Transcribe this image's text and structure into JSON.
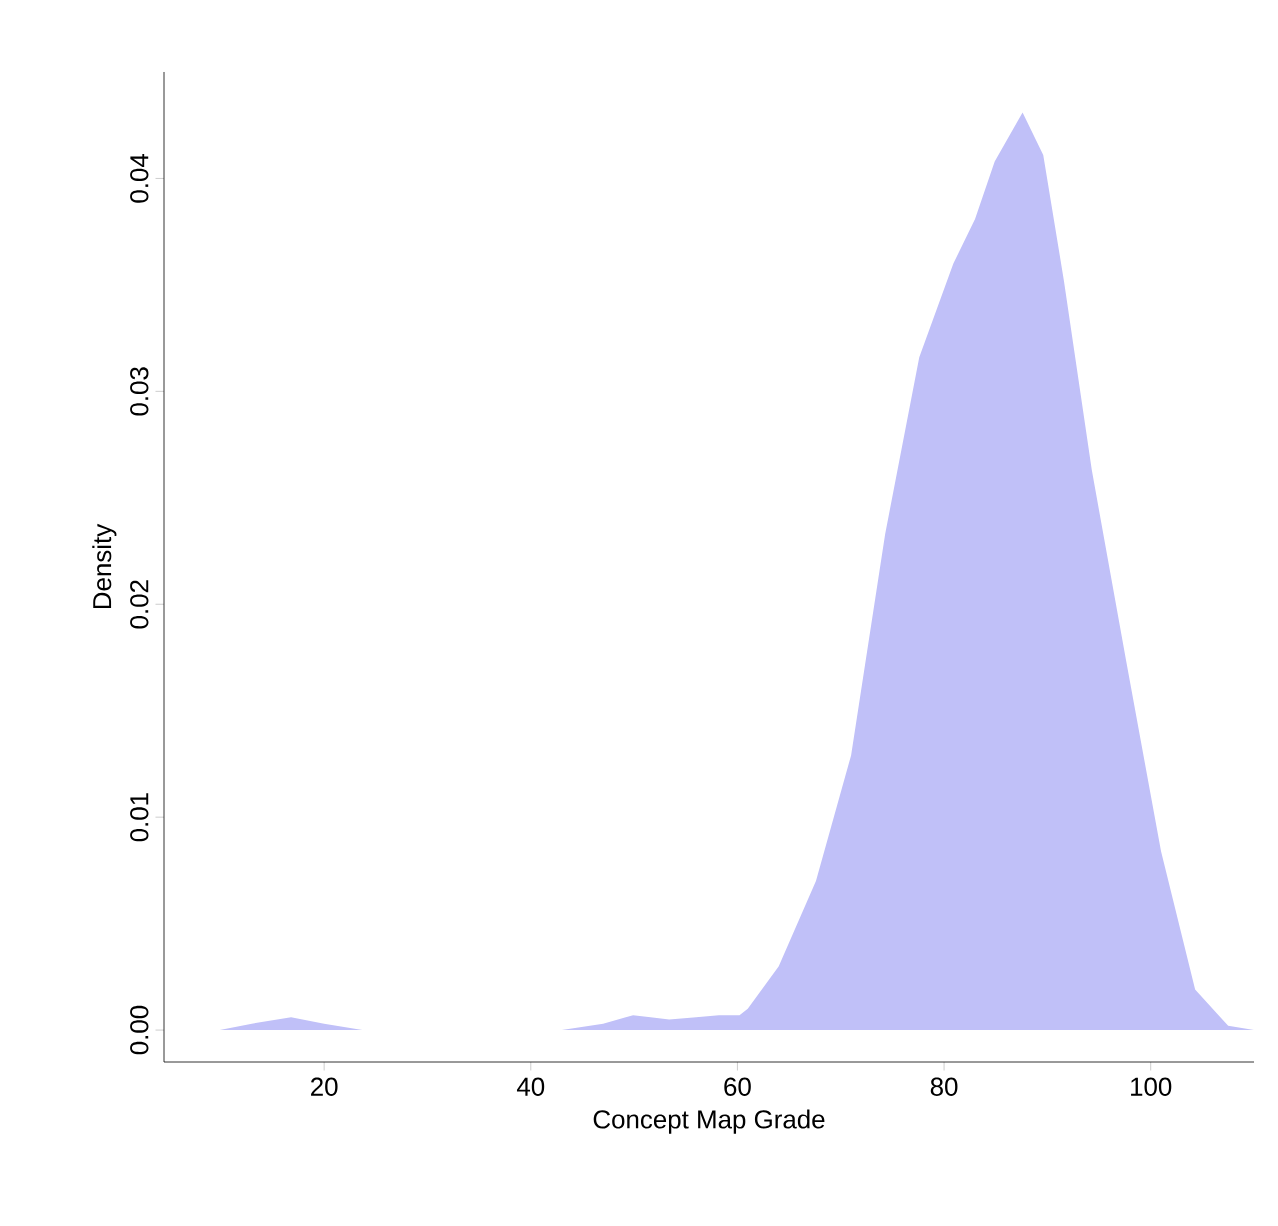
{
  "chart_data": {
    "type": "area",
    "xlabel": "Concept Map Grade",
    "ylabel": "Density",
    "xlim": [
      4.5,
      110
    ],
    "ylim": [
      -0.0015,
      0.045
    ],
    "xticks": [
      20,
      40,
      60,
      80,
      100
    ],
    "yticks": [
      {
        "value": 0,
        "label": "0.00"
      },
      {
        "value": 0.01,
        "label": "0.01"
      },
      {
        "value": 0.02,
        "label": "0.02"
      },
      {
        "value": 0.03,
        "label": "0.03"
      },
      {
        "value": 0.04,
        "label": "0.04"
      }
    ],
    "series": [
      {
        "color": "#c0c0f8",
        "x": [
          4.5,
          9.9,
          13,
          16.8,
          20,
          23.7,
          30,
          43,
          47,
          49.9,
          53.4,
          56,
          58.2,
          60.2,
          61.0,
          64,
          67.6,
          71.0,
          74.3,
          77.6,
          80.9,
          83.0,
          84.9,
          87.6,
          89.6,
          91.6,
          94.3,
          97.6,
          101,
          104.3,
          107.5,
          110
        ],
        "values": [
          0,
          0,
          0.0003,
          0.0006,
          0.0003,
          0,
          0,
          0,
          0.0003,
          0.0007,
          0.0005,
          0.0006,
          0.0007,
          0.0007,
          0.001,
          0.003,
          0.007,
          0.0129,
          0.0233,
          0.0316,
          0.036,
          0.0381,
          0.0408,
          0.0431,
          0.0411,
          0.0352,
          0.0263,
          0.0174,
          0.0084,
          0.0019,
          0.0002,
          0
        ]
      }
    ]
  }
}
